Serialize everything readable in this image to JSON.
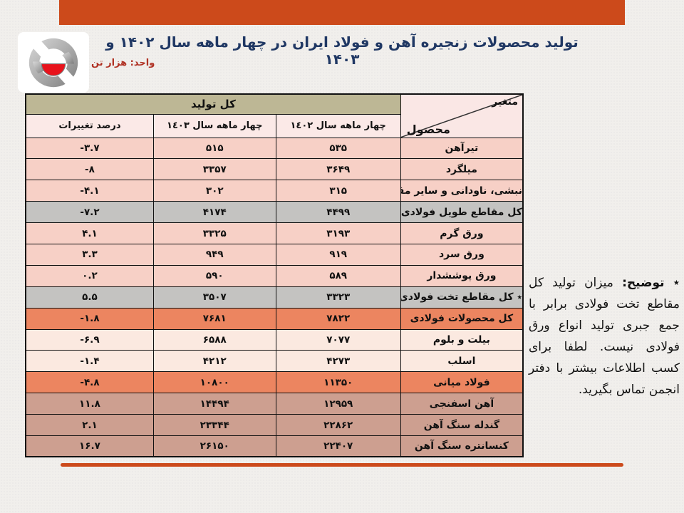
{
  "slide": {
    "title": "تولید محصولات زنجیره آهن و فولاد ایران در چهار ماهه سال ۱۴۰۲ و ۱۴۰۳",
    "unit_label": "واحد: هزار تن"
  },
  "colors": {
    "accent_bar": "#cc4a1b",
    "title_text": "#203864",
    "unit_text": "#b03224",
    "header_tan": "#bdb795",
    "row_pink": "#f7d0c6",
    "row_gray": "#c4c3c1",
    "row_orange": "#ec8560",
    "row_cream": "#fbe9e0",
    "row_rose": "#cd9f90",
    "logo_red": "#e8131c",
    "logo_gray": "#9a9a9a"
  },
  "table": {
    "corner": {
      "top_label": "متغیر",
      "bottom_label": "محصول"
    },
    "group_header": "کل تولید",
    "col_headers": [
      "چهار ماهه سال ١٤٠٢",
      "چهار ماهه سال ١٤٠٣",
      "درصد تغییرات"
    ],
    "rows": [
      {
        "product": "تیرآهن",
        "v1402": "۵۳۵",
        "v1403": "۵۱۵",
        "pct": "-۳.۷",
        "tone": "pink"
      },
      {
        "product": "میلگرد",
        "v1402": "۳۶۴۹",
        "v1403": "۳۳۵۷",
        "pct": "-۸",
        "tone": "pink"
      },
      {
        "product": "نبشی، ناودانی و سایر مقاطع",
        "v1402": "۳۱۵",
        "v1403": "۳۰۲",
        "pct": "-۴.۱",
        "tone": "pink"
      },
      {
        "product": "کل مقاطع طویل فولادی",
        "v1402": "۴۴۹۹",
        "v1403": "۴۱۷۴",
        "pct": "-۷.۲",
        "tone": "gray"
      },
      {
        "product": "ورق گرم",
        "v1402": "۳۱۹۳",
        "v1403": "۳۳۲۵",
        "pct": "۴.۱",
        "tone": "pink"
      },
      {
        "product": "ورق سرد",
        "v1402": "۹۱۹",
        "v1403": "۹۴۹",
        "pct": "۳.۳",
        "tone": "pink"
      },
      {
        "product": "ورق پوششدار",
        "v1402": "۵۸۹",
        "v1403": "۵۹۰",
        "pct": "۰.۲",
        "tone": "pink"
      },
      {
        "product": "٭ کل مقاطع تخت فولادی",
        "v1402": "۳۳۲۳",
        "v1403": "۳۵۰۷",
        "pct": "۵.۵",
        "tone": "gray"
      },
      {
        "product": "کل محصولات فولادی",
        "v1402": "۷۸۲۲",
        "v1403": "۷۶۸۱",
        "pct": "-۱.۸",
        "tone": "orange"
      },
      {
        "product": "بیلت و بلوم",
        "v1402": "۷۰۷۷",
        "v1403": "۶۵۸۸",
        "pct": "-۶.۹",
        "tone": "cream"
      },
      {
        "product": "اسلب",
        "v1402": "۴۲۷۳",
        "v1403": "۴۲۱۲",
        "pct": "-۱.۴",
        "tone": "cream"
      },
      {
        "product": "فولاد میانی",
        "v1402": "۱۱۳۵۰",
        "v1403": "۱۰۸۰۰",
        "pct": "-۴.۸",
        "tone": "orange"
      },
      {
        "product": "آهن اسفنجی",
        "v1402": "۱۲۹۵۹",
        "v1403": "۱۴۴۹۴",
        "pct": "۱۱.۸",
        "tone": "rose"
      },
      {
        "product": "گندله سنگ آهن",
        "v1402": "۲۲۸۶۲",
        "v1403": "۲۳۳۴۴",
        "pct": "۲.۱",
        "tone": "rose"
      },
      {
        "product": "کنسانتره سنگ آهن",
        "v1402": "۲۲۴۰۷",
        "v1403": "۲۶۱۵۰",
        "pct": "۱۶.۷",
        "tone": "rose"
      }
    ]
  },
  "note": {
    "star": "٭",
    "label": "توضیح:",
    "text": "میزان تولید کل مقاطع تخت فولادی برابر با جمع جبری تولید انواع ورق فولادی نیست. لطفا برای کسب اطلاعات بیشتر با دفتر انجمن تماس بگیرید."
  }
}
